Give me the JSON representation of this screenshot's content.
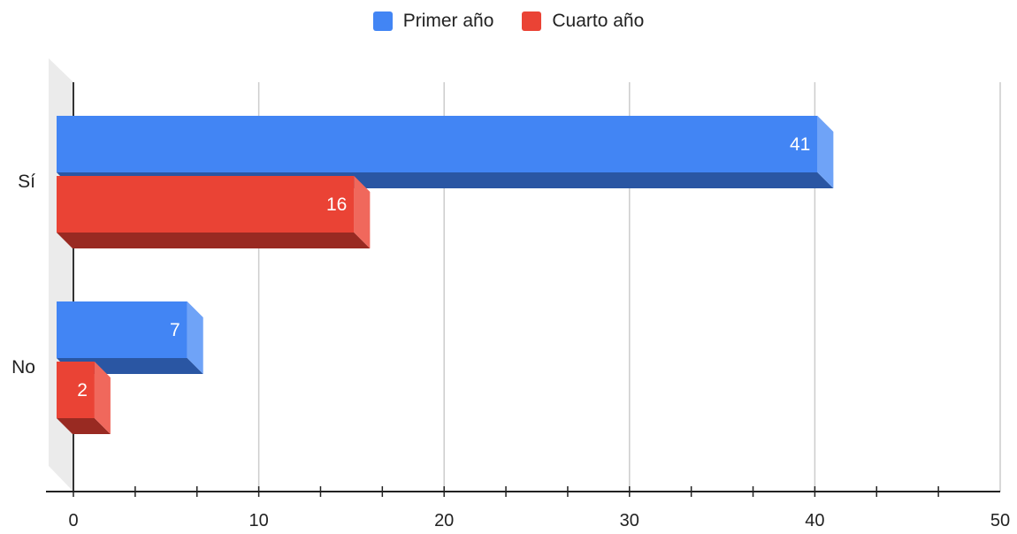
{
  "chart_data": {
    "type": "bar",
    "orientation": "horizontal",
    "style": "3d",
    "categories": [
      "Sí",
      "No"
    ],
    "series": [
      {
        "name": "Primer año",
        "values": [
          41,
          7
        ],
        "color": "#4285f4",
        "shade": "#2a56a3",
        "side": "#6fa3f7"
      },
      {
        "name": "Cuarto año",
        "values": [
          16,
          2
        ],
        "color": "#ea4335",
        "shade": "#992a22",
        "side": "#f0685c"
      }
    ],
    "xlim": [
      0,
      50
    ],
    "xticks": [
      0,
      10,
      20,
      30,
      40,
      50
    ],
    "data_labels": true,
    "grid": true,
    "legend_position": "top-center"
  }
}
